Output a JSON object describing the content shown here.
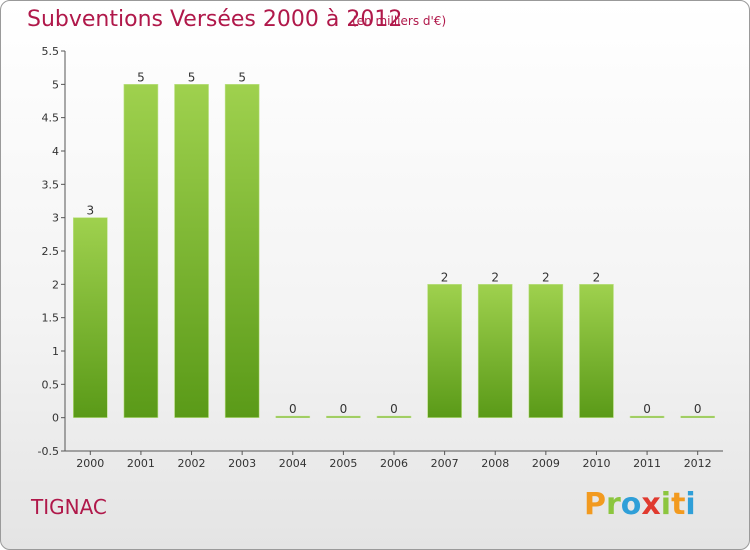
{
  "header": {
    "title": "Subventions Versées 2000 à 2012",
    "subtitle": "(en milliers d'€)"
  },
  "footer": {
    "commune": "TIGNAC",
    "logo_text": "Proxiti"
  },
  "colors": {
    "title": "#b0184a",
    "bar_top": "#9fd14e",
    "bar_bottom": "#5a9a18",
    "logo_letters": [
      "#f29a1f",
      "#8cc63f",
      "#2f9fd8",
      "#e03a2f",
      "#8cc63f",
      "#f29a1f",
      "#2f9fd8"
    ]
  },
  "chart_data": {
    "type": "bar",
    "title": "Subventions Versées 2000 à 2012",
    "subtitle": "(en milliers d'€)",
    "categories": [
      "2000",
      "2001",
      "2002",
      "2003",
      "2004",
      "2005",
      "2006",
      "2007",
      "2008",
      "2009",
      "2010",
      "2011",
      "2012"
    ],
    "values": [
      3,
      5,
      5,
      5,
      0,
      0,
      0,
      2,
      2,
      2,
      2,
      0,
      0
    ],
    "value_labels": [
      "3",
      "5",
      "5",
      "5",
      "0",
      "0",
      "0",
      "2",
      "2",
      "2",
      "2",
      "0",
      "0"
    ],
    "yticks": [
      "-0.5",
      "0",
      "0.5",
      "1",
      "1.5",
      "2",
      "2.5",
      "3",
      "3.5",
      "4",
      "4.5",
      "5",
      "5.5"
    ],
    "ytick_values": [
      -0.5,
      0,
      0.5,
      1,
      1.5,
      2,
      2.5,
      3,
      3.5,
      4,
      4.5,
      5,
      5.5
    ],
    "ylim": [
      -0.5,
      5.5
    ],
    "xlabel": "",
    "ylabel": "",
    "grid": false,
    "legend": "none"
  }
}
